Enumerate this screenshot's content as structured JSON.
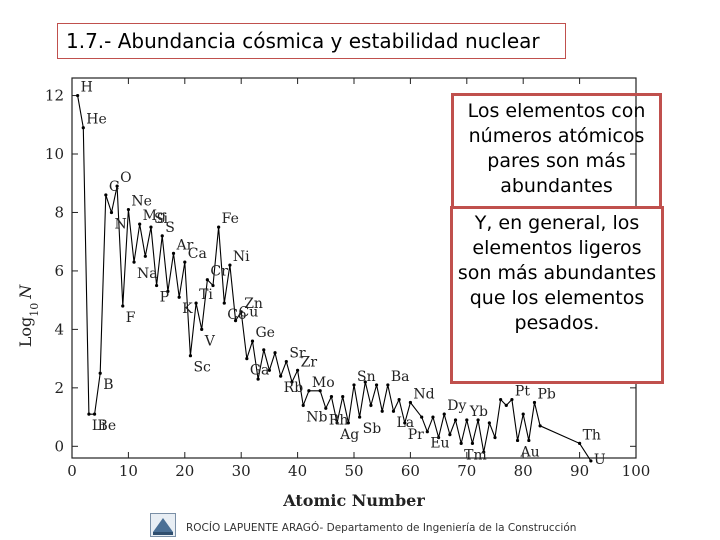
{
  "slide": {
    "title": "1.7.- Abundancia cósmica y estabilidad nuclear",
    "callout1": "Los elementos con números atómicos pares son más abundantes",
    "callout2": "Y, en general, los elementos ligeros son más abundantes que los elementos pesados.",
    "footer": "ROCÍO LAPUENTE ARAGÓ- Departamento de Ingeniería de la Construcción"
  },
  "colors": {
    "accent": "#c0504d",
    "series": "#000000"
  },
  "chart_data": {
    "type": "line",
    "xlabel": "Atomic Number",
    "ylabel_main": "Log",
    "ylabel_sub": "10",
    "ylabel_var": "N",
    "xlim": [
      0,
      100
    ],
    "ylim": [
      -0.4,
      12.6
    ],
    "xticks": [
      0,
      10,
      20,
      30,
      40,
      50,
      60,
      70,
      80,
      90,
      100
    ],
    "yticks": [
      0,
      2,
      4,
      6,
      8,
      10,
      12
    ],
    "grid": false,
    "x": [
      1,
      2,
      3,
      4,
      5,
      6,
      7,
      8,
      9,
      10,
      11,
      12,
      13,
      14,
      15,
      16,
      17,
      18,
      19,
      20,
      21,
      22,
      23,
      24,
      25,
      26,
      27,
      28,
      29,
      30,
      31,
      32,
      33,
      34,
      35,
      36,
      37,
      38,
      39,
      40,
      41,
      42,
      44,
      45,
      46,
      47,
      48,
      49,
      50,
      51,
      52,
      53,
      54,
      55,
      56,
      57,
      58,
      59,
      60,
      62,
      63,
      64,
      65,
      66,
      67,
      68,
      69,
      70,
      71,
      72,
      73,
      74,
      75,
      76,
      77,
      78,
      79,
      80,
      81,
      82,
      83,
      90,
      92
    ],
    "y": [
      12.0,
      10.9,
      1.1,
      1.1,
      2.5,
      8.6,
      8.0,
      8.9,
      4.8,
      8.1,
      6.3,
      7.6,
      6.5,
      7.5,
      5.5,
      7.2,
      5.3,
      6.6,
      5.1,
      6.3,
      3.1,
      4.9,
      4.0,
      5.7,
      5.5,
      7.5,
      4.9,
      6.2,
      4.3,
      4.6,
      3.0,
      3.6,
      2.3,
      3.3,
      2.6,
      3.2,
      2.4,
      2.9,
      2.2,
      2.6,
      1.4,
      1.9,
      1.9,
      1.3,
      1.7,
      0.8,
      1.7,
      0.8,
      2.1,
      1.0,
      2.2,
      1.4,
      2.1,
      1.2,
      2.1,
      1.2,
      1.6,
      0.8,
      1.5,
      1.0,
      0.5,
      1.0,
      0.3,
      1.1,
      0.4,
      0.9,
      0.1,
      0.9,
      0.1,
      0.9,
      -0.2,
      0.8,
      0.3,
      1.6,
      1.4,
      1.6,
      0.2,
      1.1,
      0.2,
      1.5,
      0.7,
      0.1,
      -0.5
    ],
    "annotations": [
      {
        "label": "H",
        "x": 1,
        "y": 12.0
      },
      {
        "label": "He",
        "x": 2,
        "y": 10.9
      },
      {
        "label": "Li",
        "x": 3,
        "y": 1.1
      },
      {
        "label": "Be",
        "x": 4,
        "y": 1.1
      },
      {
        "label": "B",
        "x": 5,
        "y": 2.5
      },
      {
        "label": "C",
        "x": 6,
        "y": 8.6
      },
      {
        "label": "N",
        "x": 7,
        "y": 8.0
      },
      {
        "label": "O",
        "x": 8,
        "y": 8.9
      },
      {
        "label": "F",
        "x": 9,
        "y": 4.8
      },
      {
        "label": "Ne",
        "x": 10,
        "y": 8.1
      },
      {
        "label": "Na",
        "x": 11,
        "y": 6.3
      },
      {
        "label": "Mg",
        "x": 12,
        "y": 7.6
      },
      {
        "label": "Si",
        "x": 14,
        "y": 7.5
      },
      {
        "label": "P",
        "x": 15,
        "y": 5.5
      },
      {
        "label": "S",
        "x": 16,
        "y": 7.2
      },
      {
        "label": "Ar",
        "x": 18,
        "y": 6.6
      },
      {
        "label": "K",
        "x": 19,
        "y": 5.1
      },
      {
        "label": "Ca",
        "x": 20,
        "y": 6.3
      },
      {
        "label": "Sc",
        "x": 21,
        "y": 3.1
      },
      {
        "label": "Ti",
        "x": 22,
        "y": 4.9
      },
      {
        "label": "V",
        "x": 23,
        "y": 4.0
      },
      {
        "label": "Cr",
        "x": 24,
        "y": 5.7
      },
      {
        "label": "Fe",
        "x": 26,
        "y": 7.5
      },
      {
        "label": "Co",
        "x": 27,
        "y": 4.9
      },
      {
        "label": "Ni",
        "x": 28,
        "y": 6.2
      },
      {
        "label": "Cu",
        "x": 29,
        "y": 4.3
      },
      {
        "label": "Zn",
        "x": 30,
        "y": 4.6
      },
      {
        "label": "Ga",
        "x": 31,
        "y": 3.0
      },
      {
        "label": "Ge",
        "x": 32,
        "y": 3.6
      },
      {
        "label": "Rb",
        "x": 37,
        "y": 2.4
      },
      {
        "label": "Sr",
        "x": 38,
        "y": 2.9
      },
      {
        "label": "Zr",
        "x": 40,
        "y": 2.6
      },
      {
        "label": "Mo",
        "x": 42,
        "y": 1.9
      },
      {
        "label": "Nb",
        "x": 41,
        "y": 1.4
      },
      {
        "label": "Rh",
        "x": 45,
        "y": 1.3
      },
      {
        "label": "Ag",
        "x": 47,
        "y": 0.8
      },
      {
        "label": "Sb",
        "x": 51,
        "y": 1.0
      },
      {
        "label": "Sn",
        "x": 50,
        "y": 2.1
      },
      {
        "label": "Ba",
        "x": 56,
        "y": 2.1
      },
      {
        "label": "Nd",
        "x": 60,
        "y": 1.5
      },
      {
        "label": "La",
        "x": 57,
        "y": 1.2
      },
      {
        "label": "Pr",
        "x": 59,
        "y": 0.8
      },
      {
        "label": "Eu",
        "x": 63,
        "y": 0.5
      },
      {
        "label": "Dy",
        "x": 66,
        "y": 1.1
      },
      {
        "label": "Yb",
        "x": 70,
        "y": 0.9
      },
      {
        "label": "Tm",
        "x": 69,
        "y": 0.1
      },
      {
        "label": "Pt",
        "x": 78,
        "y": 1.6
      },
      {
        "label": "Pb",
        "x": 82,
        "y": 1.5
      },
      {
        "label": "Au",
        "x": 79,
        "y": 0.2
      },
      {
        "label": "Th",
        "x": 90,
        "y": 0.1
      },
      {
        "label": "U",
        "x": 92,
        "y": -0.5
      }
    ]
  }
}
